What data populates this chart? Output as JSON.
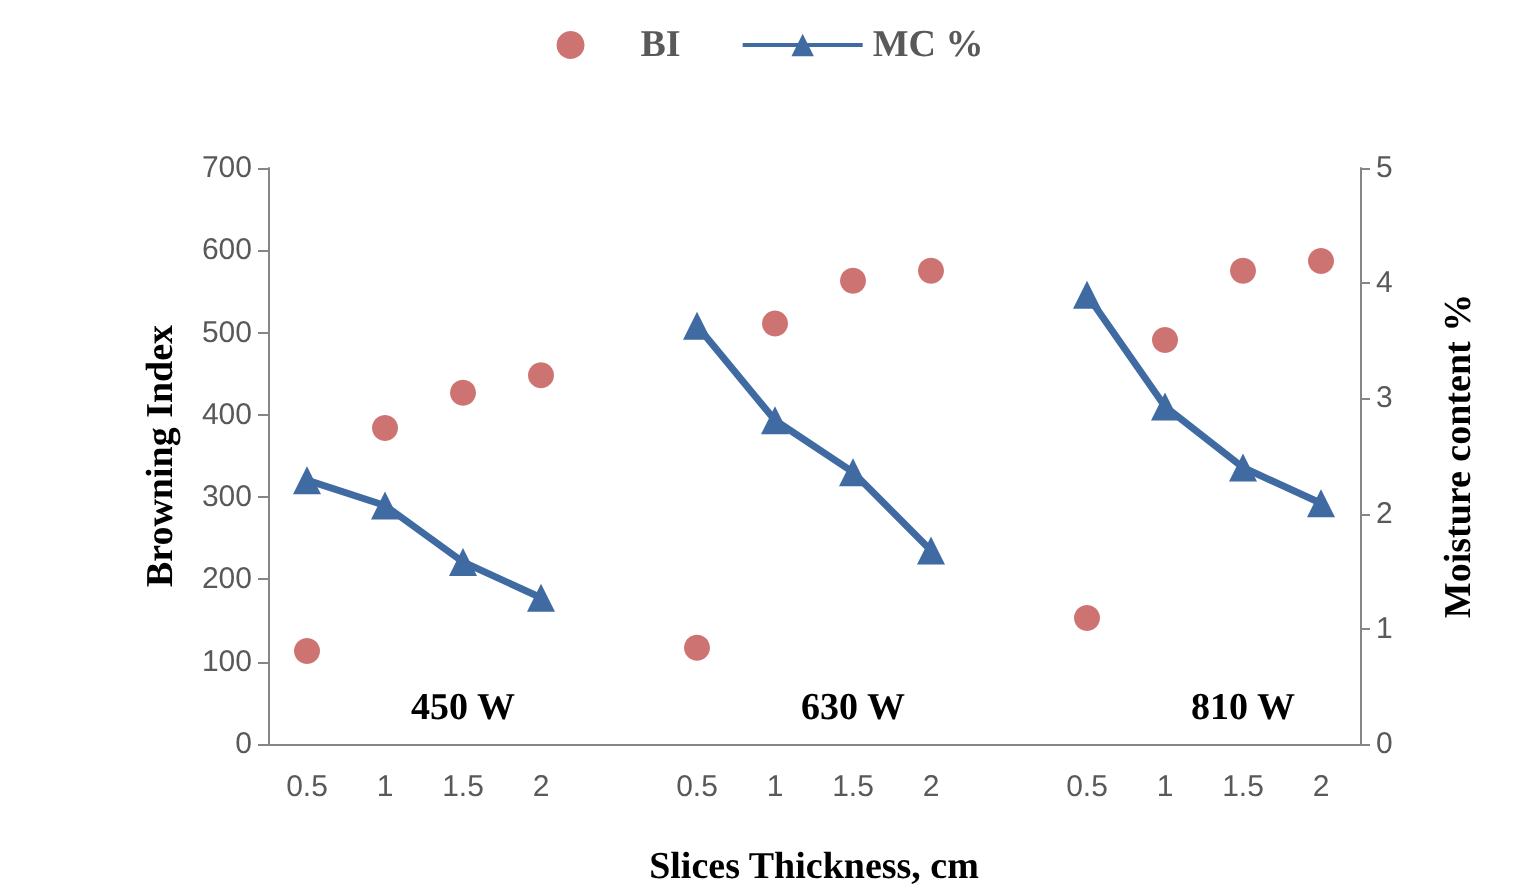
{
  "chart_data": {
    "type": "scatter",
    "xlabel": "Slices Thickness, cm",
    "ylabel": "Browning Index",
    "y2label": "Moisture content %",
    "categories": [
      "0.5",
      "1",
      "1.5",
      "2",
      null,
      "0.5",
      "1",
      "1.5",
      "2",
      null,
      "0.5",
      "1",
      "1.5",
      "2"
    ],
    "series": [
      {
        "name": "BI",
        "marker": "circle",
        "color": "#c0504d",
        "values": [
          113,
          384,
          427,
          448,
          null,
          117,
          511,
          563,
          575,
          null,
          153,
          491,
          575,
          587
        ]
      },
      {
        "name": "MC %",
        "type": "line",
        "marker": "triangle",
        "axis": "y2",
        "color": "#3f6aa2",
        "values": [
          2.29,
          2.07,
          1.58,
          1.27,
          null,
          3.63,
          2.81,
          2.36,
          1.68,
          null,
          3.9,
          2.93,
          2.4,
          2.09
        ]
      }
    ],
    "ylim": [
      0,
      700
    ],
    "yticks": [
      0,
      100,
      200,
      300,
      400,
      500,
      600,
      700
    ],
    "y2lim": [
      0,
      5
    ],
    "y2ticks": [
      0,
      1,
      2,
      3,
      4,
      5
    ],
    "annotations": [
      "450 W",
      "630 W",
      "810 W"
    ],
    "legend": "top",
    "grid": false
  }
}
